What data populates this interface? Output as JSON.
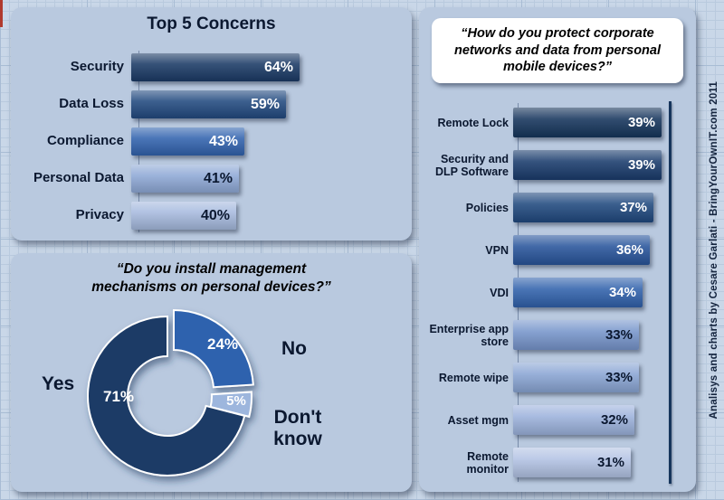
{
  "attribution": "Analisys and charts by Cesare Garlati - BringYourOwnIT.com 2011",
  "colors": {
    "page_bg": "#c9d7e8",
    "grid_minor": "#b9cade",
    "grid_major": "#a8bcd4",
    "panel_bg": "#b9c9df",
    "title_box_bg": "#ffffff",
    "axis_line": "#16355c",
    "red_edge_mark": "#b03a2e"
  },
  "chart_data": [
    {
      "id": "top5-concerns",
      "type": "bar",
      "orientation": "horizontal",
      "title": "Top 5 Concerns",
      "categories": [
        "Security",
        "Data Loss",
        "Compliance",
        "Personal Data",
        "Privacy"
      ],
      "values": [
        64,
        59,
        43,
        41,
        40
      ],
      "labels": [
        "64%",
        "59%",
        "43%",
        "41%",
        "40%"
      ],
      "bar_colors": [
        "#1b3a66",
        "#234a80",
        "#3263ae",
        "#8fa9d6",
        "#a6bade"
      ],
      "label_colors": [
        "#ffffff",
        "#ffffff",
        "#ffffff",
        "#0b1830",
        "#0b1830"
      ],
      "xlim": [
        0,
        70
      ],
      "grid": false,
      "value_label_position": "inside-end"
    },
    {
      "id": "install-mechanisms",
      "type": "pie",
      "style": "donut",
      "title": "“Do you install management\nmechanisms on personal devices?”",
      "categories": [
        "No",
        "Don't know",
        "Yes"
      ],
      "values": [
        24,
        5,
        71
      ],
      "labels": [
        "24%",
        "5%",
        "71%"
      ],
      "slice_colors": [
        "#2e62ae",
        "#9db6dd",
        "#1c3a66"
      ],
      "start_angle_deg": 0,
      "direction": "clockwise",
      "exploded_slice": "No",
      "legend_position": "outside-callouts"
    },
    {
      "id": "protection-methods",
      "type": "bar",
      "orientation": "horizontal",
      "title": "“How do you protect corporate\nnetworks and data from personal\nmobile devices?”",
      "categories": [
        "Remote Lock",
        "Security and\nDLP Software",
        "Policies",
        "VPN",
        "VDI",
        "Enterprise app\nstore",
        "Remote wipe",
        "Asset mgm",
        "Remote\nmonitor"
      ],
      "values": [
        39,
        39,
        37,
        36,
        34,
        33,
        33,
        32,
        31
      ],
      "labels": [
        "39%",
        "39%",
        "37%",
        "36%",
        "34%",
        "33%",
        "33%",
        "32%",
        "31%"
      ],
      "bar_colors": [
        "#16355c",
        "#1a3c6c",
        "#20497f",
        "#28549b",
        "#3162ac",
        "#7795cb",
        "#8aa5d4",
        "#9cb2dc",
        "#b3c3e4"
      ],
      "label_colors": [
        "#ffffff",
        "#ffffff",
        "#ffffff",
        "#ffffff",
        "#ffffff",
        "#0b1830",
        "#0b1830",
        "#0b1830",
        "#0b1830"
      ],
      "xlim": [
        0,
        40
      ],
      "axis_line_at": 40,
      "grid": false,
      "value_label_position": "inside-end"
    }
  ]
}
